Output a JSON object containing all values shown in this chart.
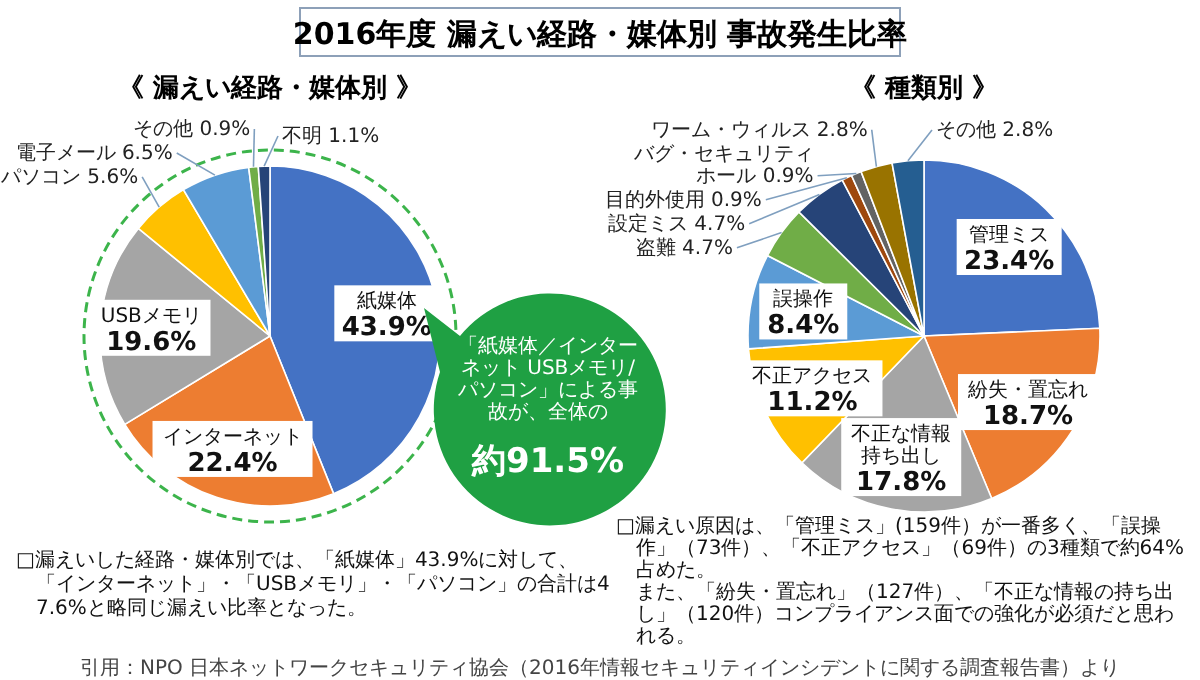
{
  "chart_data": [
    {
      "type": "pie",
      "title": "2016年度 漏えい経路・媒体別 事故発生比率",
      "subtitle": "《 漏えい経路・媒体別 》",
      "categories": [
        "紙媒体",
        "インターネット",
        "USBメモリ",
        "パソコン",
        "電子メール",
        "その他",
        "不明"
      ],
      "values": [
        43.9,
        22.4,
        19.6,
        5.6,
        6.5,
        0.9,
        1.1
      ],
      "colors": [
        "#4472c4",
        "#ed7d31",
        "#a5a5a5",
        "#ffc000",
        "#5b9bd5",
        "#70ad47",
        "#264478"
      ],
      "value_labels": [
        "43.9%",
        "22.4%",
        "19.6%",
        "5.6%",
        "6.5%",
        "0.9%",
        "1.1%"
      ],
      "annotations": [
        "「紙媒体／インターネット USBメモリ/パソコン」による事故が、全体の",
        "約91.5%",
        "□漏えいした経路・媒体別では、「紙媒体」43.9%に対して、「インターネット」・「USBメモリ」・「パソコン」の合計は47.6%と略同じ漏えい比率となった。"
      ]
    },
    {
      "type": "pie",
      "title": "《 種類別 》",
      "categories": [
        "管理ミス",
        "紛失・置忘れ",
        "不正な情報持ち出し",
        "不正アクセス",
        "誤操作",
        "盗難",
        "設定ミス",
        "目的外使用",
        "バグ・セキュリティホール",
        "ワーム・ウィルス",
        "その他"
      ],
      "values": [
        23.4,
        18.7,
        17.8,
        11.2,
        8.4,
        4.7,
        4.7,
        0.9,
        0.9,
        2.8,
        2.8
      ],
      "colors": [
        "#4472c4",
        "#ed7d31",
        "#a5a5a5",
        "#ffc000",
        "#5b9bd5",
        "#70ad47",
        "#264478",
        "#9e480e",
        "#636363",
        "#997300",
        "#255e91"
      ],
      "value_labels": [
        "23.4%",
        "18.7%",
        "17.8%",
        "11.2%",
        "8.4%",
        "4.7%",
        "4.7%",
        "0.9%",
        "0.9%",
        "2.8%",
        "2.8%"
      ],
      "annotations": [
        "□漏えい原因は、「管理ミス」(159件）が一番多く、「誤操作」（73件）、「不正アクセス」（69件）の3種類で約64%占めた。",
        "また、「紛失・置忘れ」（127件）、「不正な情報の持ち出し」（120件）コンプライアンス面での強化が必須だと思われる。",
        "引用：NPO 日本ネットワークセキュリティ協会（2016年情報セキュリティインシデントに関する調査報告書）より"
      ]
    }
  ]
}
